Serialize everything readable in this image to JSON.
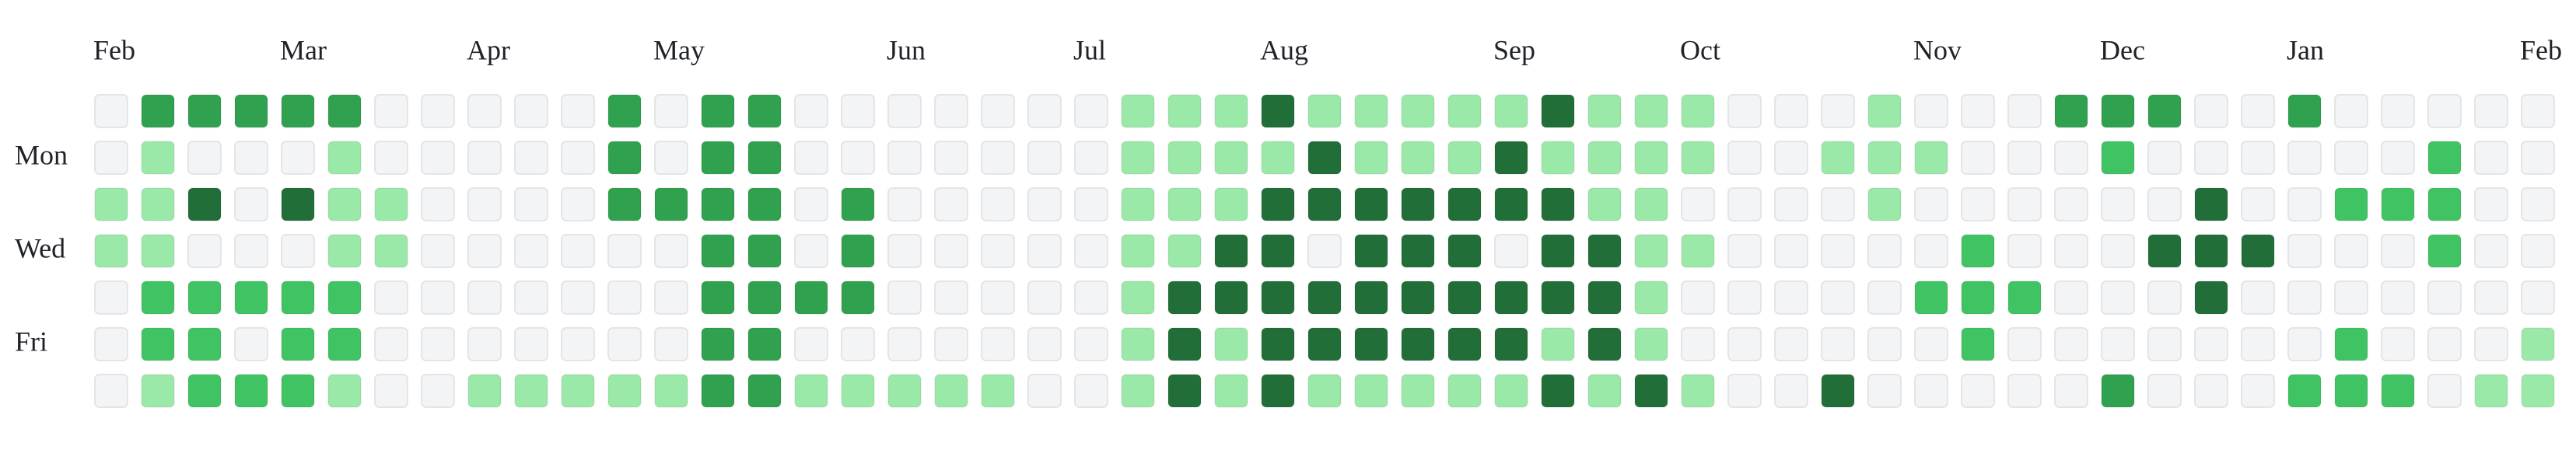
{
  "chart_data": {
    "type": "calendar-heatmap",
    "x": [
      "Feb",
      null,
      null,
      null,
      "Mar",
      null,
      null,
      null,
      "Apr",
      null,
      null,
      null,
      "May",
      null,
      null,
      null,
      null,
      "Jun",
      null,
      null,
      null,
      "Jul",
      null,
      null,
      null,
      "Aug",
      null,
      null,
      null,
      null,
      "Sep",
      null,
      null,
      null,
      "Oct",
      null,
      null,
      null,
      null,
      "Nov",
      null,
      null,
      null,
      "Dec",
      null,
      null,
      null,
      "Jan",
      null,
      null,
      null,
      null,
      "Feb"
    ],
    "rows": [
      null,
      "Mon",
      null,
      "Wed",
      null,
      "Fri",
      null
    ],
    "colors": [
      "#f3f4f6",
      "#9be9a8",
      "#40c463",
      "#30a14e",
      "#216e39"
    ],
    "values": [
      [
        0,
        3,
        3,
        3,
        3,
        3,
        0,
        0,
        0,
        0,
        0,
        3,
        0,
        3,
        3,
        0,
        0,
        0,
        0,
        0,
        0,
        0,
        1,
        1,
        1,
        4,
        1,
        1,
        1,
        1,
        1,
        4,
        1,
        1,
        1,
        0,
        0,
        0,
        1,
        0,
        0,
        0,
        3,
        3,
        3,
        0,
        0,
        3,
        0,
        0,
        0,
        0,
        0
      ],
      [
        0,
        1,
        0,
        0,
        0,
        1,
        0,
        0,
        0,
        0,
        0,
        3,
        0,
        3,
        3,
        0,
        0,
        0,
        0,
        0,
        0,
        0,
        1,
        1,
        1,
        1,
        4,
        1,
        1,
        1,
        4,
        1,
        1,
        1,
        1,
        0,
        0,
        1,
        1,
        1,
        0,
        0,
        0,
        2,
        0,
        0,
        0,
        0,
        0,
        0,
        2,
        0,
        0
      ],
      [
        1,
        1,
        4,
        0,
        4,
        1,
        1,
        0,
        0,
        0,
        0,
        3,
        3,
        3,
        3,
        0,
        3,
        0,
        0,
        0,
        0,
        0,
        1,
        1,
        1,
        4,
        4,
        4,
        4,
        4,
        4,
        4,
        1,
        1,
        0,
        0,
        0,
        0,
        1,
        0,
        0,
        0,
        0,
        0,
        0,
        4,
        0,
        0,
        2,
        2,
        2,
        0,
        0
      ],
      [
        1,
        1,
        0,
        0,
        0,
        1,
        1,
        0,
        0,
        0,
        0,
        0,
        0,
        3,
        3,
        0,
        3,
        0,
        0,
        0,
        0,
        0,
        1,
        1,
        4,
        4,
        0,
        4,
        4,
        4,
        0,
        4,
        4,
        1,
        1,
        0,
        0,
        0,
        0,
        0,
        2,
        0,
        0,
        0,
        4,
        4,
        4,
        0,
        0,
        0,
        2,
        0,
        0
      ],
      [
        0,
        2,
        2,
        2,
        2,
        2,
        0,
        0,
        0,
        0,
        0,
        0,
        0,
        3,
        3,
        3,
        3,
        0,
        0,
        0,
        0,
        0,
        1,
        4,
        4,
        4,
        4,
        4,
        4,
        4,
        4,
        4,
        4,
        1,
        0,
        0,
        0,
        0,
        0,
        2,
        2,
        2,
        0,
        0,
        0,
        4,
        0,
        0,
        0,
        0,
        0,
        0,
        0
      ],
      [
        0,
        2,
        2,
        0,
        2,
        2,
        0,
        0,
        0,
        0,
        0,
        0,
        0,
        3,
        3,
        0,
        0,
        0,
        0,
        0,
        0,
        0,
        1,
        4,
        1,
        4,
        4,
        4,
        4,
        4,
        4,
        1,
        4,
        1,
        0,
        0,
        0,
        0,
        0,
        0,
        2,
        0,
        0,
        0,
        0,
        0,
        0,
        0,
        2,
        0,
        0,
        0,
        1
      ],
      [
        0,
        1,
        2,
        2,
        2,
        1,
        0,
        0,
        1,
        1,
        1,
        1,
        1,
        3,
        3,
        1,
        1,
        1,
        1,
        1,
        0,
        0,
        1,
        4,
        1,
        4,
        1,
        1,
        1,
        1,
        1,
        4,
        1,
        4,
        1,
        0,
        0,
        4,
        0,
        0,
        0,
        0,
        0,
        3,
        0,
        0,
        0,
        2,
        2,
        2,
        0,
        1,
        1
      ]
    ]
  }
}
